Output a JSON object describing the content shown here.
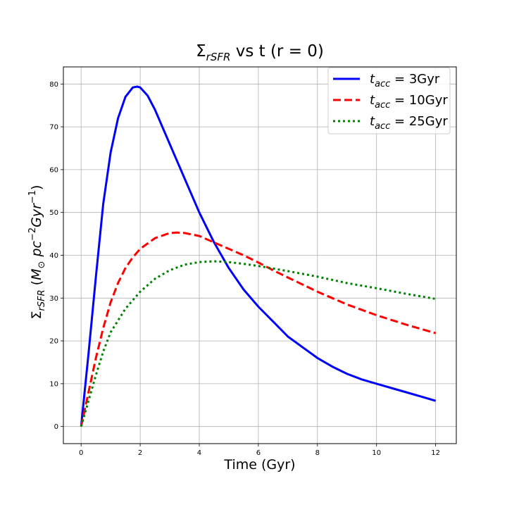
{
  "chart_data": {
    "type": "line",
    "title": "Σ_rSFR vs t (r = 0)",
    "title_parts": {
      "sigma": "Σ",
      "sub": "rSFR",
      "rest": " vs t (r = 0)"
    },
    "xlabel": "Time (Gyr)",
    "ylabel": "Σ_rSFR (M_⊙ pc^-2 Gyr^-1)",
    "ylabel_parts": {
      "sigma": "Σ",
      "sub": "rSFR",
      "open": " (",
      "m": "M",
      "msub": "⊙",
      "pc": "  pc",
      "pcsup": "−2",
      "gyr": "Gyr",
      "gyrsup": "−1",
      "close": ")"
    },
    "xlim": [
      -0.6,
      12.7
    ],
    "ylim": [
      -4,
      84
    ],
    "xticks": [
      0,
      2,
      4,
      6,
      8,
      10,
      12
    ],
    "yticks": [
      0,
      10,
      20,
      30,
      40,
      50,
      60,
      70,
      80
    ],
    "grid": true,
    "legend_position": "top-right",
    "series": [
      {
        "name": "t_acc = 3Gyr",
        "label_parts": {
          "t": "t",
          "sub": "acc",
          "eq": " = 3Gyr"
        },
        "color": "#0000ff",
        "style": "solid",
        "x": [
          0,
          0.25,
          0.5,
          0.75,
          1.0,
          1.25,
          1.5,
          1.75,
          1.9,
          2.0,
          2.25,
          2.5,
          3.0,
          3.5,
          4.0,
          4.5,
          5.0,
          5.5,
          6.0,
          6.5,
          7.0,
          7.5,
          8.0,
          8.5,
          9.0,
          9.5,
          10.0,
          10.5,
          11.0,
          11.5,
          12.0
        ],
        "y": [
          0,
          17,
          35,
          52,
          64,
          72,
          77,
          79.2,
          79.4,
          79.2,
          77.3,
          74,
          66,
          58,
          50,
          43,
          37,
          32,
          28,
          24.5,
          21,
          18.5,
          16,
          14,
          12.3,
          11,
          10,
          9,
          8,
          7,
          6
        ]
      },
      {
        "name": "t_acc = 10Gyr",
        "label_parts": {
          "t": "t",
          "sub": "acc",
          "eq": " = 10Gyr"
        },
        "color": "#ff0000",
        "style": "dashed",
        "x": [
          0,
          0.25,
          0.5,
          0.75,
          1.0,
          1.25,
          1.5,
          1.75,
          2.0,
          2.5,
          3.0,
          3.25,
          3.5,
          4.0,
          4.5,
          5.0,
          5.5,
          6.0,
          6.5,
          7.0,
          8.0,
          9.0,
          10.0,
          11.0,
          12.0
        ],
        "y": [
          0,
          8,
          16,
          23,
          29,
          33.5,
          37,
          39.5,
          41.5,
          44,
          45.2,
          45.3,
          45.2,
          44.5,
          43,
          41.5,
          40,
          38.3,
          36.5,
          34.8,
          31.5,
          28.5,
          26,
          23.8,
          21.8
        ]
      },
      {
        "name": "t_acc = 25Gyr",
        "label_parts": {
          "t": "t",
          "sub": "acc",
          "eq": " = 25Gyr"
        },
        "color": "#008000",
        "style": "dotted",
        "x": [
          0,
          0.25,
          0.5,
          0.75,
          1.0,
          1.5,
          2.0,
          2.5,
          3.0,
          3.5,
          4.0,
          4.5,
          5.0,
          5.5,
          6.0,
          7.0,
          8.0,
          9.0,
          10.0,
          11.0,
          12.0
        ],
        "y": [
          0,
          6,
          12,
          17.5,
          22,
          27.5,
          31.5,
          34.5,
          36.5,
          37.8,
          38.4,
          38.6,
          38.4,
          38,
          37.5,
          36.3,
          35,
          33.5,
          32.3,
          31,
          29.8
        ]
      }
    ]
  }
}
